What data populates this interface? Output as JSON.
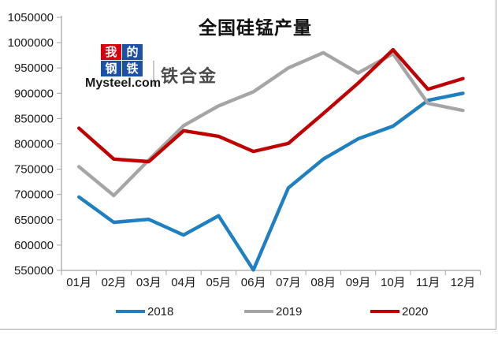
{
  "chart_data": {
    "type": "line",
    "title": "全国硅锰产量",
    "categories": [
      "01月",
      "02月",
      "03月",
      "04月",
      "05月",
      "06月",
      "07月",
      "08月",
      "09月",
      "10月",
      "11月",
      "12月"
    ],
    "series": [
      {
        "name": "2018",
        "color": "#1e7fc1",
        "values": [
          695000,
          645000,
          651000,
          620000,
          658000,
          551000,
          713000,
          770000,
          810000,
          835000,
          886000,
          900000
        ]
      },
      {
        "name": "2019",
        "color": "#a5a5a5",
        "values": [
          755000,
          698000,
          768000,
          836000,
          875000,
          903000,
          950000,
          980000,
          940000,
          978000,
          880000,
          866000
        ]
      },
      {
        "name": "2020",
        "color": "#c00000",
        "values": [
          831000,
          770000,
          765000,
          826000,
          815000,
          785000,
          801000,
          860000,
          920000,
          986000,
          908000,
          929000
        ]
      }
    ],
    "ylim": [
      550000,
      1050000
    ],
    "ytick_step": 50000,
    "xlabel": "",
    "ylabel": "",
    "grid": false,
    "legend_position": "bottom"
  },
  "logo": {
    "squares": [
      "我",
      "的",
      "钢",
      "铁"
    ],
    "brand": "Mysteel.com",
    "suffix": "铁合金"
  },
  "colors": {
    "axis": "#a6a6a6",
    "text": "#1a1a1a",
    "logo_red": "#d7000f",
    "logo_blue": "#1c50a5",
    "frame": "#a3a3a3"
  }
}
